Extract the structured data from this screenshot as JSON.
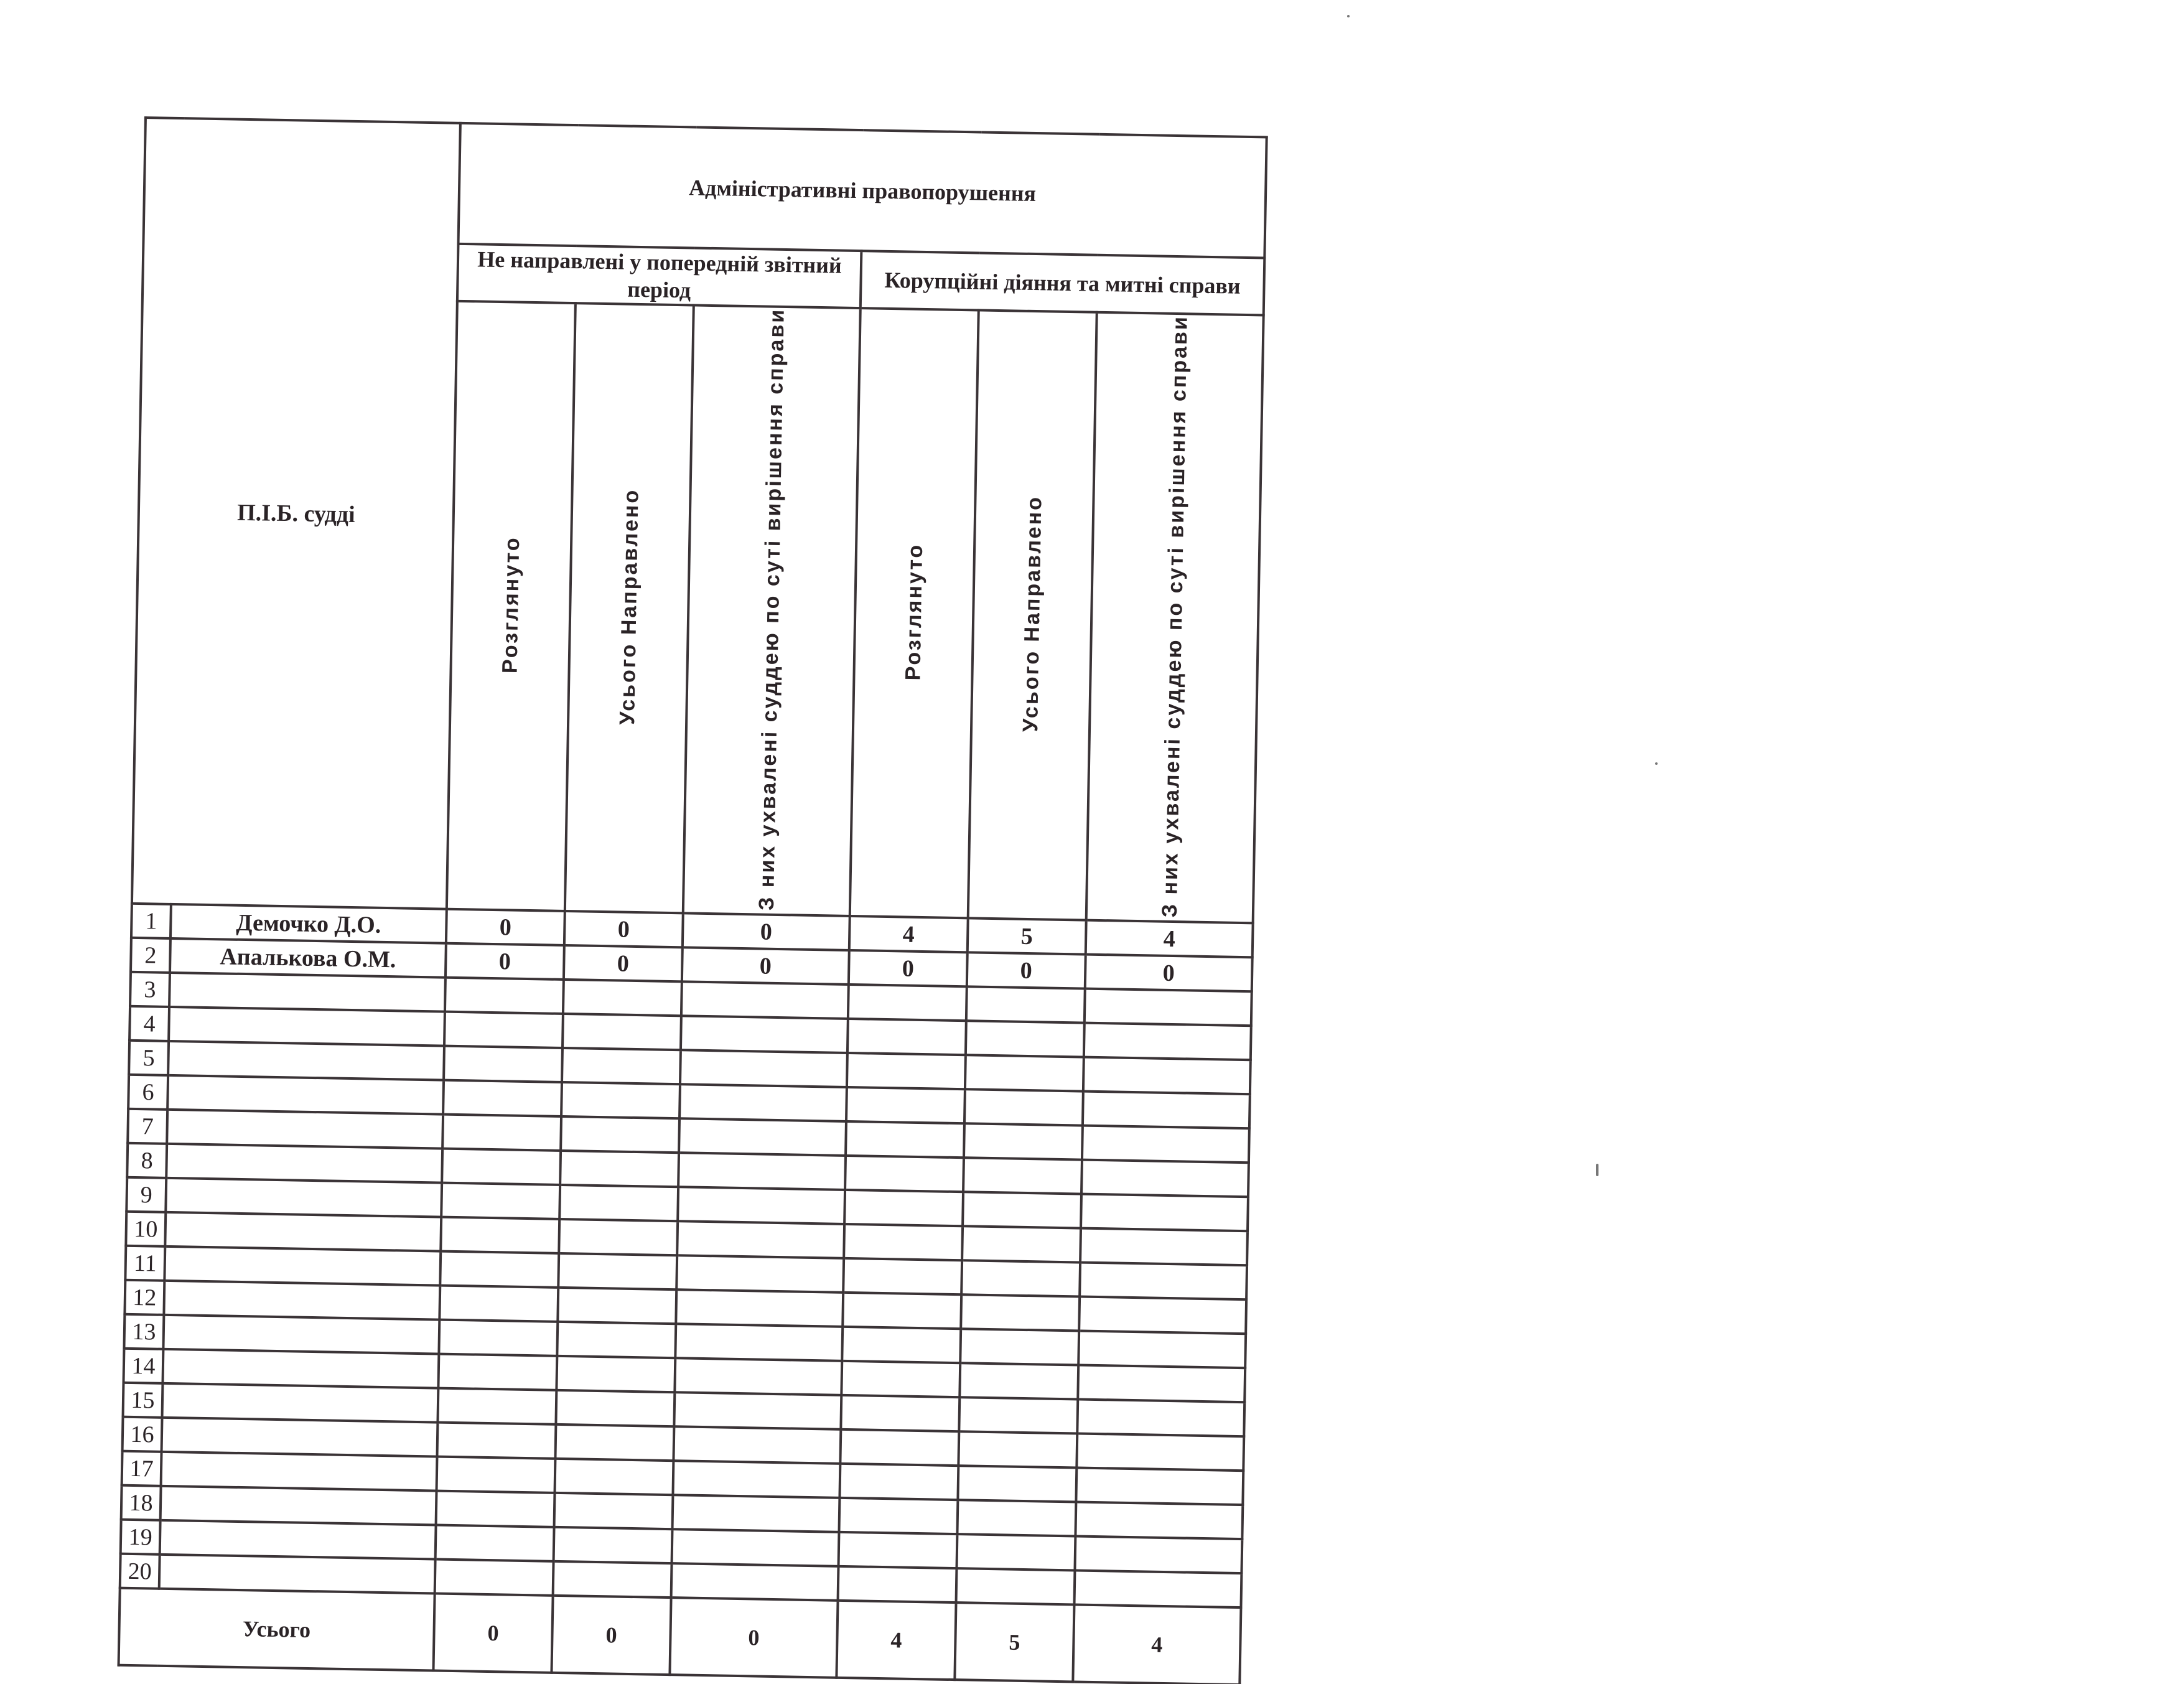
{
  "table": {
    "judge_header": "П.І.Б. судді",
    "group_header": "Адміністративні правопорушення",
    "subgroups": [
      "Не направлені у попередній звітний період",
      "Корупційні діяння та митні справи"
    ],
    "columns": [
      "Розглянуто",
      "Усього Направлено",
      "З них ухвалені суддею по суті вирішення справи",
      "Розглянуто",
      "Усього Направлено",
      "З них ухвалені суддею по суті вирішення справи"
    ],
    "rows": [
      {
        "n": "1",
        "name": "Демочко Д.О.",
        "values": [
          "0",
          "0",
          "0",
          "4",
          "5",
          "4"
        ]
      },
      {
        "n": "2",
        "name": "Апалькова О.М.",
        "values": [
          "0",
          "0",
          "0",
          "0",
          "0",
          "0"
        ]
      },
      {
        "n": "3",
        "name": "",
        "values": [
          "",
          "",
          "",
          "",
          "",
          ""
        ]
      },
      {
        "n": "4",
        "name": "",
        "values": [
          "",
          "",
          "",
          "",
          "",
          ""
        ]
      },
      {
        "n": "5",
        "name": "",
        "values": [
          "",
          "",
          "",
          "",
          "",
          ""
        ]
      },
      {
        "n": "6",
        "name": "",
        "values": [
          "",
          "",
          "",
          "",
          "",
          ""
        ]
      },
      {
        "n": "7",
        "name": "",
        "values": [
          "",
          "",
          "",
          "",
          "",
          ""
        ]
      },
      {
        "n": "8",
        "name": "",
        "values": [
          "",
          "",
          "",
          "",
          "",
          ""
        ]
      },
      {
        "n": "9",
        "name": "",
        "values": [
          "",
          "",
          "",
          "",
          "",
          ""
        ]
      },
      {
        "n": "10",
        "name": "",
        "values": [
          "",
          "",
          "",
          "",
          "",
          ""
        ]
      },
      {
        "n": "11",
        "name": "",
        "values": [
          "",
          "",
          "",
          "",
          "",
          ""
        ]
      },
      {
        "n": "12",
        "name": "",
        "values": [
          "",
          "",
          "",
          "",
          "",
          ""
        ]
      },
      {
        "n": "13",
        "name": "",
        "values": [
          "",
          "",
          "",
          "",
          "",
          ""
        ]
      },
      {
        "n": "14",
        "name": "",
        "values": [
          "",
          "",
          "",
          "",
          "",
          ""
        ]
      },
      {
        "n": "15",
        "name": "",
        "values": [
          "",
          "",
          "",
          "",
          "",
          ""
        ]
      },
      {
        "n": "16",
        "name": "",
        "values": [
          "",
          "",
          "",
          "",
          "",
          ""
        ]
      },
      {
        "n": "17",
        "name": "",
        "values": [
          "",
          "",
          "",
          "",
          "",
          ""
        ]
      },
      {
        "n": "18",
        "name": "",
        "values": [
          "",
          "",
          "",
          "",
          "",
          ""
        ]
      },
      {
        "n": "19",
        "name": "",
        "values": [
          "",
          "",
          "",
          "",
          "",
          ""
        ]
      },
      {
        "n": "20",
        "name": "",
        "values": [
          "",
          "",
          "",
          "",
          "",
          ""
        ]
      }
    ],
    "total_label": "Усього",
    "totals": [
      "0",
      "0",
      "0",
      "4",
      "5",
      "4"
    ]
  }
}
